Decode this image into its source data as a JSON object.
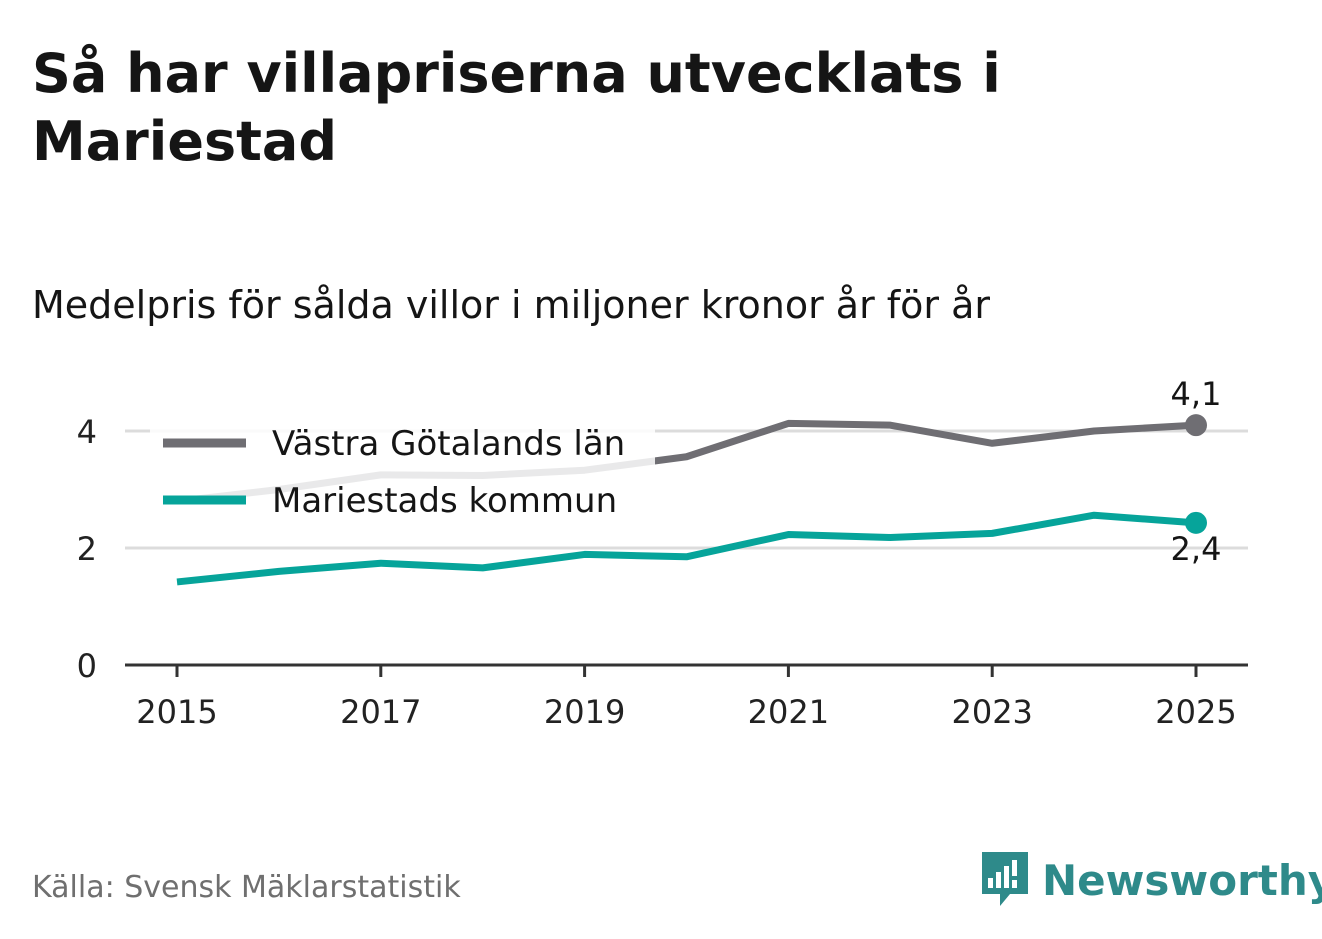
{
  "title": "Så har villapriserna utvecklats i Mariestad",
  "subtitle": "Medelpris för sålda villor i miljoner kronor år för år",
  "source": "Källa: Svensk Mäklarstatistik",
  "brand": "Newsworthy",
  "colors": {
    "lan": "#6f6e73",
    "kommun": "#06a49a",
    "grid": "#dcdcdc",
    "axis": "#333333",
    "brand": "#2e8a8a"
  },
  "chart_data": {
    "type": "line",
    "x": [
      2015,
      2016,
      2017,
      2018,
      2019,
      2020,
      2021,
      2022,
      2023,
      2024,
      2025
    ],
    "x_ticks": [
      "2015",
      "2017",
      "2019",
      "2021",
      "2023",
      "2025"
    ],
    "y_ticks": [
      "0",
      "2",
      "4"
    ],
    "ylim": [
      0,
      4.5
    ],
    "series": [
      {
        "name": "Västra Götalands län",
        "key": "lan",
        "values": [
          2.8,
          3.0,
          3.25,
          3.24,
          3.33,
          3.56,
          4.13,
          4.1,
          3.79,
          4.0,
          4.1
        ],
        "end_label": "4,1"
      },
      {
        "name": "Mariestads kommun",
        "key": "kommun",
        "values": [
          1.42,
          1.6,
          1.74,
          1.66,
          1.89,
          1.85,
          2.23,
          2.18,
          2.25,
          2.56,
          2.43
        ],
        "end_label": "2,4"
      }
    ]
  }
}
